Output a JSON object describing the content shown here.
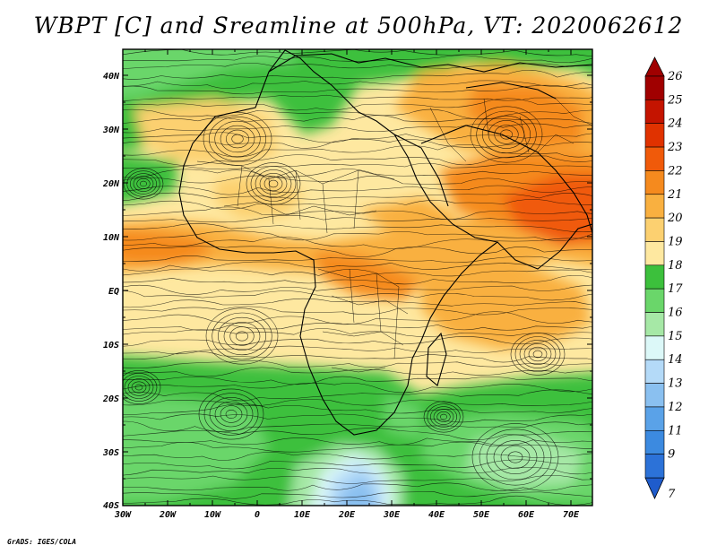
{
  "title": "WBPT [C] and Sreamline at 500hPa, VT: 2020062612",
  "credit": "GrADS: IGES/COLA",
  "map": {
    "lat_labels": [
      "40N",
      "30N",
      "20N",
      "10N",
      "EQ",
      "10S",
      "20S",
      "30S",
      "40S"
    ],
    "lon_labels": [
      "30W",
      "20W",
      "10W",
      "0",
      "10E",
      "20E",
      "30E",
      "40E",
      "50E",
      "60E",
      "70E"
    ],
    "lon_range": [
      -30,
      75
    ],
    "lat_range": [
      -40,
      45
    ]
  },
  "colorbar": {
    "labels": [
      "26",
      "25",
      "24",
      "23",
      "22",
      "21",
      "20",
      "19",
      "18",
      "17",
      "16",
      "15",
      "14",
      "13",
      "12",
      "11",
      "9",
      "7"
    ],
    "colors": [
      "#a00000",
      "#c41400",
      "#e03200",
      "#f05a0a",
      "#f58a1e",
      "#f9b040",
      "#fcd070",
      "#fee8a0",
      "#3cc03c",
      "#6ad66a",
      "#a6e8a6",
      "#dcf8f8",
      "#b4daf8",
      "#8ac0f0",
      "#5aa2e8",
      "#3c8ae0",
      "#2c72d8"
    ],
    "min_label": "7",
    "max_label": "26"
  }
}
